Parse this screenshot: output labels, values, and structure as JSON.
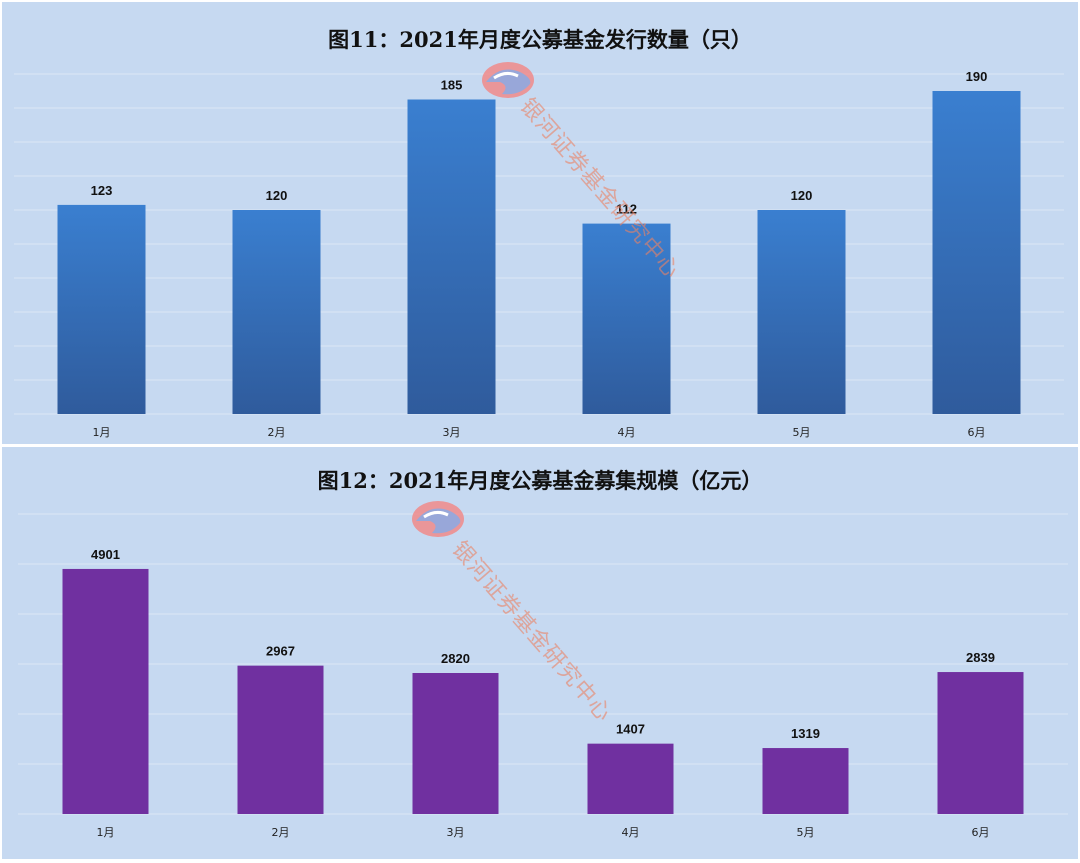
{
  "chart_data": [
    {
      "type": "bar",
      "title": "图11：2021年月度公募基金发行数量（只）",
      "categories": [
        "1月",
        "2月",
        "3月",
        "4月",
        "5月",
        "6月"
      ],
      "values": [
        123,
        120,
        185,
        112,
        120,
        190
      ],
      "ylim": [
        0,
        200
      ],
      "grid": true,
      "bar_color_top": "#3a7fd0",
      "bar_color_bottom": "#2f5b9c",
      "watermark": "银河证券基金研究中心"
    },
    {
      "type": "bar",
      "title": "图12：2021年月度公募基金募集规模（亿元）",
      "categories": [
        "1月",
        "2月",
        "3月",
        "4月",
        "5月",
        "6月"
      ],
      "values": [
        4901,
        2967,
        2820,
        1407,
        1319,
        2839
      ],
      "ylim": [
        0,
        6000
      ],
      "grid": true,
      "bar_color": "#7030a0",
      "watermark": "银河证券基金研究中心"
    }
  ]
}
